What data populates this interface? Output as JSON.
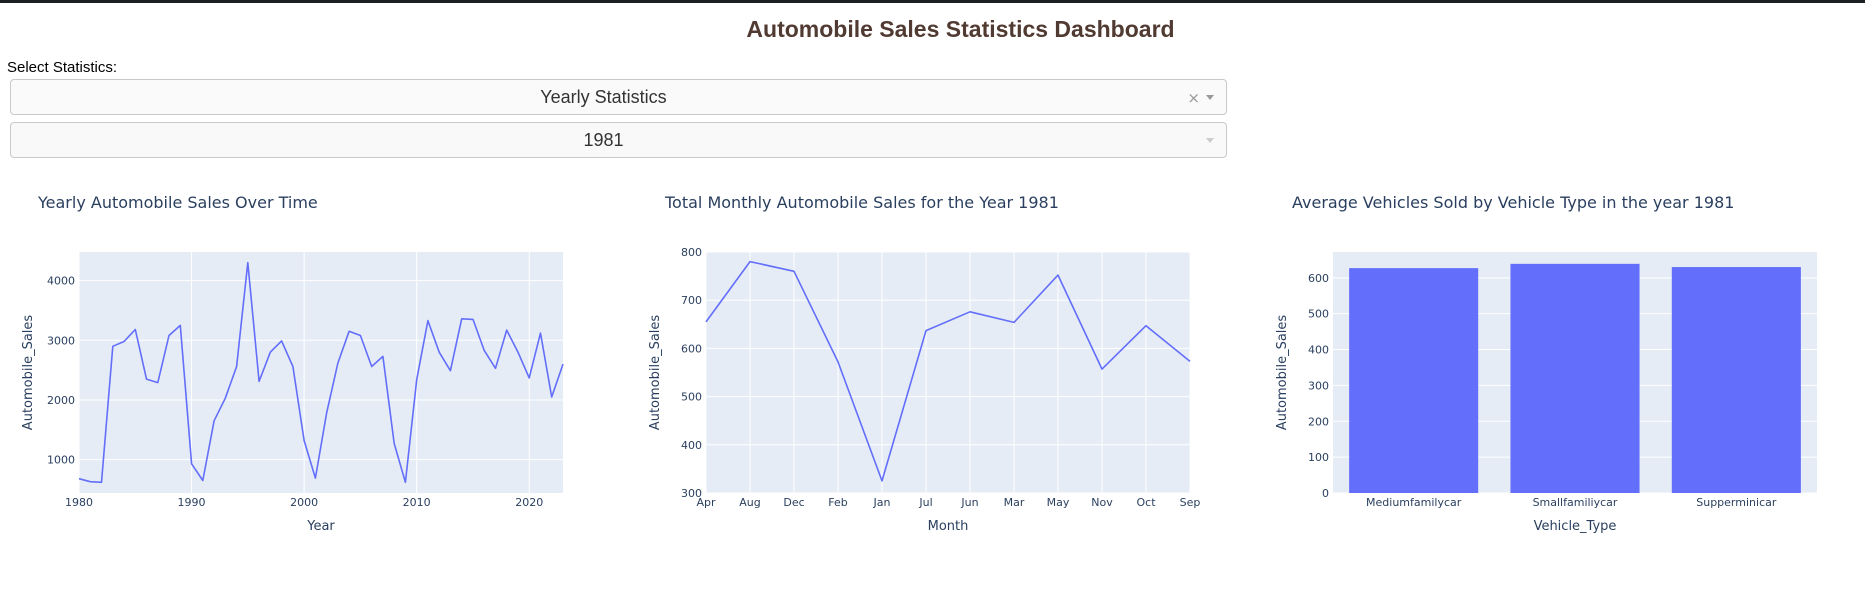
{
  "dashboard": {
    "title": "Automobile Sales Statistics Dashboard",
    "select_label": "Select Statistics:",
    "statistics_dropdown": {
      "value": "Yearly Statistics",
      "clear_icon": "×"
    },
    "year_dropdown": {
      "value": "1981"
    }
  },
  "colors": {
    "trace": "#636efa",
    "plot_bg": "#e5ecf6",
    "grid": "#ffffff",
    "text": "#2a3f5f",
    "title": "#503a32"
  },
  "chart_data": [
    {
      "type": "line",
      "title": "Yearly Automobile Sales Over Time",
      "xlabel": "Year",
      "ylabel": "Automobile_Sales",
      "x": [
        1980,
        1981,
        1982,
        1983,
        1984,
        1985,
        1986,
        1987,
        1988,
        1989,
        1990,
        1991,
        1992,
        1993,
        1994,
        1995,
        1996,
        1997,
        1998,
        1999,
        2000,
        2001,
        2002,
        2003,
        2004,
        2005,
        2006,
        2007,
        2008,
        2009,
        2010,
        2011,
        2012,
        2013,
        2014,
        2015,
        2016,
        2017,
        2018,
        2019,
        2020,
        2021,
        2022,
        2023
      ],
      "y": [
        680,
        630,
        620,
        2900,
        2980,
        3180,
        2350,
        2290,
        3080,
        3250,
        930,
        650,
        1650,
        2030,
        2560,
        4300,
        2310,
        2800,
        2990,
        2560,
        1320,
        690,
        1780,
        2620,
        3150,
        3080,
        2560,
        2730,
        1270,
        620,
        2340,
        3330,
        2800,
        2490,
        3360,
        3350,
        2830,
        2530,
        3170,
        2800,
        2370,
        3120,
        2050,
        2600
      ],
      "xlim": [
        1980,
        2023
      ],
      "ylim": [
        440,
        4480
      ],
      "xticks": [
        1980,
        1990,
        2000,
        2010,
        2020
      ],
      "yticks": [
        1000,
        2000,
        3000,
        4000
      ]
    },
    {
      "type": "line",
      "title": "Total Monthly Automobile Sales for the Year 1981",
      "xlabel": "Month",
      "ylabel": "Automobile_Sales",
      "categories": [
        "Apr",
        "Aug",
        "Dec",
        "Feb",
        "Jan",
        "Jul",
        "Jun",
        "Mar",
        "May",
        "Nov",
        "Oct",
        "Sep"
      ],
      "values": [
        655,
        780,
        760,
        572,
        325,
        637,
        676,
        654,
        752,
        557,
        647,
        573
      ],
      "ylim": [
        300,
        800
      ],
      "yticks": [
        300,
        400,
        500,
        600,
        700,
        800
      ]
    },
    {
      "type": "bar",
      "title": "Average Vehicles Sold by Vehicle Type in the year 1981",
      "xlabel": "Vehicle_Type",
      "ylabel": "Automobile_Sales",
      "categories": [
        "Mediumfamilycar",
        "Smallfamiliycar",
        "Supperminicar"
      ],
      "values": [
        627,
        639,
        630
      ],
      "ylim": [
        0,
        672
      ],
      "yticks": [
        0,
        100,
        200,
        300,
        400,
        500,
        600
      ]
    }
  ]
}
